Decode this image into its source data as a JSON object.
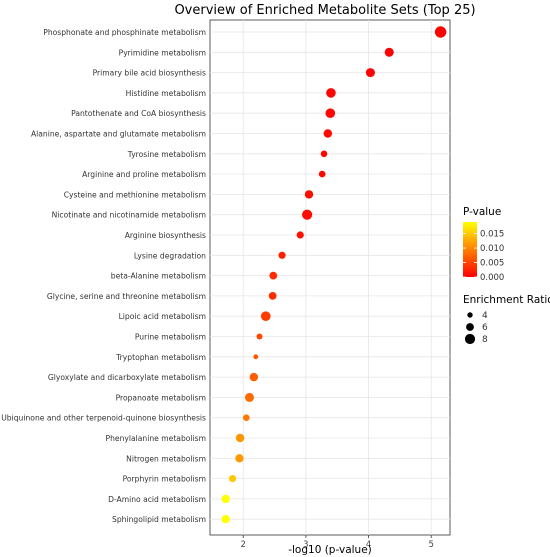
{
  "chart_data": {
    "type": "scatter",
    "title": "Overview of Enriched Metabolite Sets (Top 25)",
    "xlabel": "-log10 (p-value)",
    "ylabel": "",
    "xlim": [
      1.47,
      5.3
    ],
    "xticks": [
      2,
      3,
      4,
      5
    ],
    "grid": true,
    "categories": [
      "Phosphonate and phosphinate metabolism",
      "Pyrimidine metabolism",
      "Primary bile acid biosynthesis",
      "Histidine metabolism",
      "Pantothenate and CoA biosynthesis",
      "Alanine, aspartate and glutamate metabolism",
      "Tyrosine metabolism",
      "Arginine and proline metabolism",
      "Cysteine and methionine metabolism",
      "Nicotinate and nicotinamide metabolism",
      "Arginine biosynthesis",
      "Lysine degradation",
      "beta-Alanine metabolism",
      "Glycine, serine and threonine metabolism",
      "Lipoic acid metabolism",
      "Purine metabolism",
      "Tryptophan metabolism",
      "Glyoxylate and dicarboxylate metabolism",
      "Propanoate metabolism",
      "Ubiquinone and other terpenoid-quinone biosynthesis",
      "Phenylalanine metabolism",
      "Nitrogen metabolism",
      "Porphyrin metabolism",
      "D-Amino acid metabolism",
      "Sphingolipid metabolism"
    ],
    "x": [
      5.15,
      4.33,
      4.03,
      3.4,
      3.39,
      3.35,
      3.29,
      3.26,
      3.05,
      3.02,
      2.91,
      2.62,
      2.48,
      2.47,
      2.36,
      2.26,
      2.2,
      2.17,
      2.1,
      2.05,
      1.95,
      1.94,
      1.83,
      1.72,
      1.72
    ],
    "p_value": [
      7e-06,
      4.7e-05,
      9.3e-05,
      0.0004,
      0.00041,
      0.00045,
      0.00051,
      0.00055,
      0.00089,
      0.00095,
      0.0012,
      0.0024,
      0.0033,
      0.0034,
      0.0044,
      0.0055,
      0.0063,
      0.0068,
      0.0079,
      0.0089,
      0.0112,
      0.0115,
      0.0148,
      0.019,
      0.019
    ],
    "enrichment_ratio": [
      9,
      7,
      7,
      7.5,
      7.5,
      6.5,
      5,
      5,
      6.5,
      8,
      5.5,
      5.5,
      6,
      6,
      7.5,
      4.5,
      3.5,
      6.5,
      7,
      5,
      6.5,
      6.5,
      5.5,
      6.5,
      6.5
    ],
    "legend_color": {
      "title": "P-value",
      "ticks": [
        "0.015",
        "0.010",
        "0.005",
        "0.000"
      ],
      "tick_values": [
        0.015,
        0.01,
        0.005,
        0
      ],
      "range": [
        0,
        0.019
      ],
      "colors": [
        "#ff0000",
        "#ffff00"
      ]
    },
    "legend_size": {
      "title": "Enrichment Ratio",
      "labels": [
        "4",
        "6",
        "8"
      ],
      "values": [
        4,
        6,
        8
      ]
    },
    "legend_placement": "right"
  }
}
